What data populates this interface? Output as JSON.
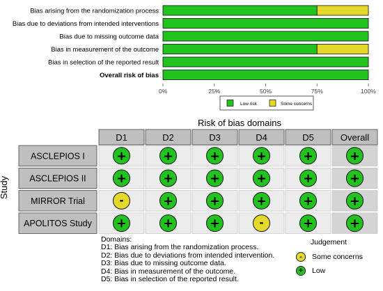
{
  "colors": {
    "low": "#22c21f",
    "some_concerns": "#e4d82a",
    "header_fill": "#bfbfbf",
    "study_fill": "#bfbfbf",
    "cell_fill": "#ececec",
    "overall_fill": "#d4d4d4"
  },
  "chart_data": [
    {
      "type": "bar",
      "orientation": "horizontal",
      "stacked": true,
      "categories": [
        "Bias arising from the randomization process",
        "Bias due to deviations from intended interventions",
        "Bias due to missing outcome data",
        "Bias in measurement of the outcome",
        "Bias in selection of the reported result",
        "Overall risk of bias"
      ],
      "bold_category": "Overall risk of bias",
      "series": [
        {
          "name": "Low risk",
          "color": "#22c21f",
          "values": [
            75,
            100,
            100,
            75,
            100,
            100
          ]
        },
        {
          "name": "Some concerns",
          "color": "#e4d82a",
          "values": [
            25,
            0,
            0,
            25,
            0,
            0
          ]
        }
      ],
      "xlim": [
        0,
        100
      ],
      "xticks": [
        "0%",
        "25%",
        "50%",
        "75%",
        "100%"
      ],
      "legend_position": "bottom"
    },
    {
      "type": "table",
      "title": "Risk of bias domains",
      "row_axis_label": "Study",
      "columns": [
        "D1",
        "D2",
        "D3",
        "D4",
        "D5",
        "Overall"
      ],
      "rows": [
        {
          "study": "ASCLEPIOS I",
          "judgements": [
            "low",
            "low",
            "low",
            "low",
            "low",
            "low"
          ]
        },
        {
          "study": "ASCLEPIOS II",
          "judgements": [
            "low",
            "low",
            "low",
            "low",
            "low",
            "low"
          ]
        },
        {
          "study": "MIRROR Trial",
          "judgements": [
            "some",
            "low",
            "low",
            "low",
            "low",
            "low"
          ]
        },
        {
          "study": "APOLITOS Study",
          "judgements": [
            "low",
            "low",
            "low",
            "some",
            "low",
            "low"
          ]
        }
      ],
      "symbols": {
        "low": "+",
        "some": "-"
      }
    }
  ],
  "domains_legend": {
    "heading": "Domains:",
    "items": [
      "D1: Bias arising from the randomization process.",
      "D2: Bias due to deviations from intended intervention.",
      "D3: Bias due to missing outcome data.",
      "D4: Bias in measurement of the outcome.",
      "D5: Bias in selection of the reported result."
    ]
  },
  "judgement_legend": {
    "heading": "Judgement",
    "items": [
      {
        "label": "Some concerns",
        "symbol": "-",
        "color": "#e4d82a"
      },
      {
        "label": "Low",
        "symbol": "+",
        "color": "#22c21f"
      }
    ]
  }
}
